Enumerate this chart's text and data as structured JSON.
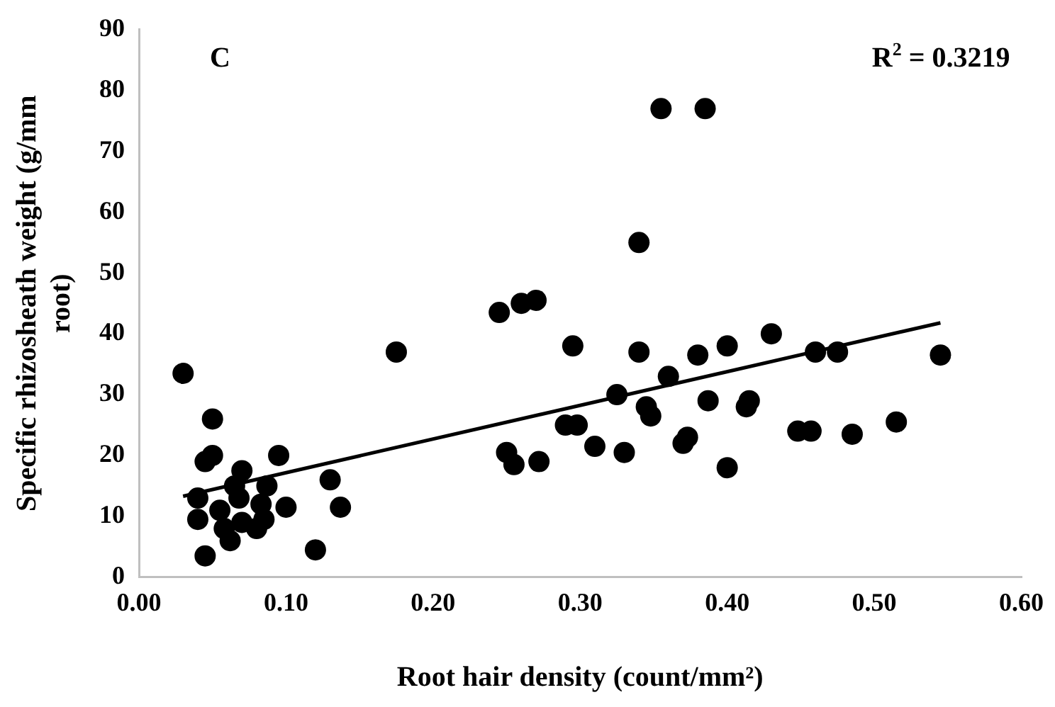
{
  "chart_data": {
    "type": "scatter",
    "xlabel": "Root hair density (count/mm²)",
    "ylabel": "Specific rhizosheath weight (g/mm root)",
    "annotations": [
      "C",
      "R$^{2}$ = 0.3219"
    ],
    "xlim": [
      0,
      0.6
    ],
    "xticks": [
      {
        "value": 0,
        "label": "0.00"
      },
      {
        "value": 0.1,
        "label": "0.10"
      },
      {
        "value": 0.2,
        "label": "0.20"
      },
      {
        "value": 0.3,
        "label": "0.30"
      },
      {
        "value": 0.4,
        "label": "0.40"
      },
      {
        "value": 0.5,
        "label": "0.50"
      },
      {
        "value": 0.6,
        "label": "0.60"
      }
    ],
    "ylim": [
      0,
      90
    ],
    "yticks": [
      0,
      10,
      20,
      30,
      40,
      50,
      60,
      70,
      80,
      90
    ],
    "grid": false,
    "legend": false,
    "marker": "circle",
    "series": [
      {
        "color": "#000000",
        "x": [
          0.03,
          0.04,
          0.04,
          0.045,
          0.045,
          0.05,
          0.05,
          0.055,
          0.058,
          0.062,
          0.065,
          0.068,
          0.07,
          0.07,
          0.08,
          0.083,
          0.085,
          0.087,
          0.095,
          0.1,
          0.12,
          0.13,
          0.137,
          0.175,
          0.245,
          0.25,
          0.255,
          0.26,
          0.27,
          0.272,
          0.29,
          0.295,
          0.298,
          0.31,
          0.325,
          0.33,
          0.34,
          0.34,
          0.345,
          0.348,
          0.355,
          0.36,
          0.37,
          0.373,
          0.38,
          0.385,
          0.387,
          0.4,
          0.4,
          0.413,
          0.415,
          0.43,
          0.448,
          0.457,
          0.46,
          0.475,
          0.485,
          0.515,
          0.545
        ],
        "values": [
          33.5,
          13,
          9.5,
          3.5,
          19,
          20,
          26,
          11,
          8,
          6,
          15,
          13,
          9,
          17.5,
          8,
          12,
          9.5,
          15,
          20,
          11.5,
          4.5,
          16,
          11.5,
          37,
          43.5,
          20.5,
          18.5,
          45,
          45.5,
          19,
          25,
          38,
          25,
          21.5,
          30,
          20.5,
          55,
          37,
          28,
          26.5,
          77,
          33,
          22,
          23,
          36.5,
          77,
          29,
          18,
          38,
          28,
          29,
          40,
          24,
          24,
          37,
          37,
          23.5,
          25.5,
          36.5
        ]
      },
      {
        "type": "line",
        "color": "#000000",
        "marker": "none",
        "line_style": "solid",
        "x": [
          0.03,
          0.545
        ],
        "values": [
          13.3,
          41.8
        ]
      }
    ]
  }
}
